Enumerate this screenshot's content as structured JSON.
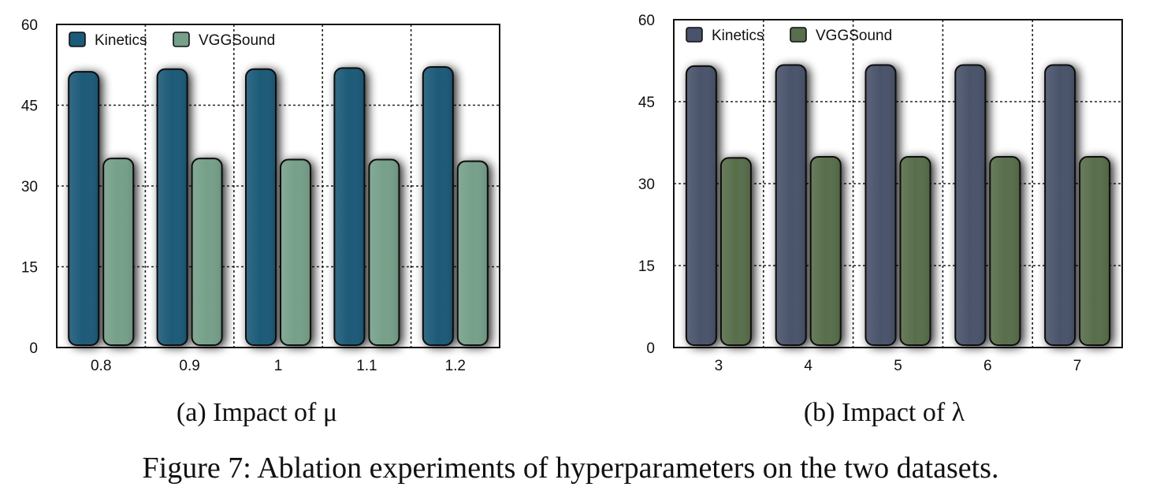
{
  "figure_caption": "Figure 7: Ablation experiments of hyperparameters on the two datasets.",
  "chart_data": [
    {
      "type": "bar",
      "caption": "(a) Impact of μ",
      "categories": [
        "0.8",
        "0.9",
        "1",
        "1.1",
        "1.2"
      ],
      "series": [
        {
          "name": "Kinetics",
          "values": [
            51.2,
            51.7,
            51.7,
            51.9,
            52.1
          ],
          "color": "#1b5a78"
        },
        {
          "name": "VGGSound",
          "values": [
            35.1,
            35.1,
            34.9,
            34.9,
            34.6
          ],
          "color": "#76a08a"
        }
      ],
      "ylim": [
        0,
        60
      ],
      "yticks": [
        "0",
        "15",
        "30",
        "45",
        "60"
      ],
      "grid": true,
      "legend": "top-left"
    },
    {
      "type": "bar",
      "caption": "(b) Impact of λ",
      "categories": [
        "3",
        "4",
        "5",
        "6",
        "7"
      ],
      "series": [
        {
          "name": "Kinetics",
          "values": [
            51.5,
            51.7,
            51.7,
            51.7,
            51.7
          ],
          "color": "#48526a"
        },
        {
          "name": "VGGSound",
          "values": [
            34.7,
            34.9,
            34.9,
            34.9,
            34.9
          ],
          "color": "#586e4c"
        }
      ],
      "ylim": [
        0,
        60
      ],
      "yticks": [
        "0",
        "15",
        "30",
        "45",
        "60"
      ],
      "grid": true,
      "legend": "top-left"
    }
  ]
}
